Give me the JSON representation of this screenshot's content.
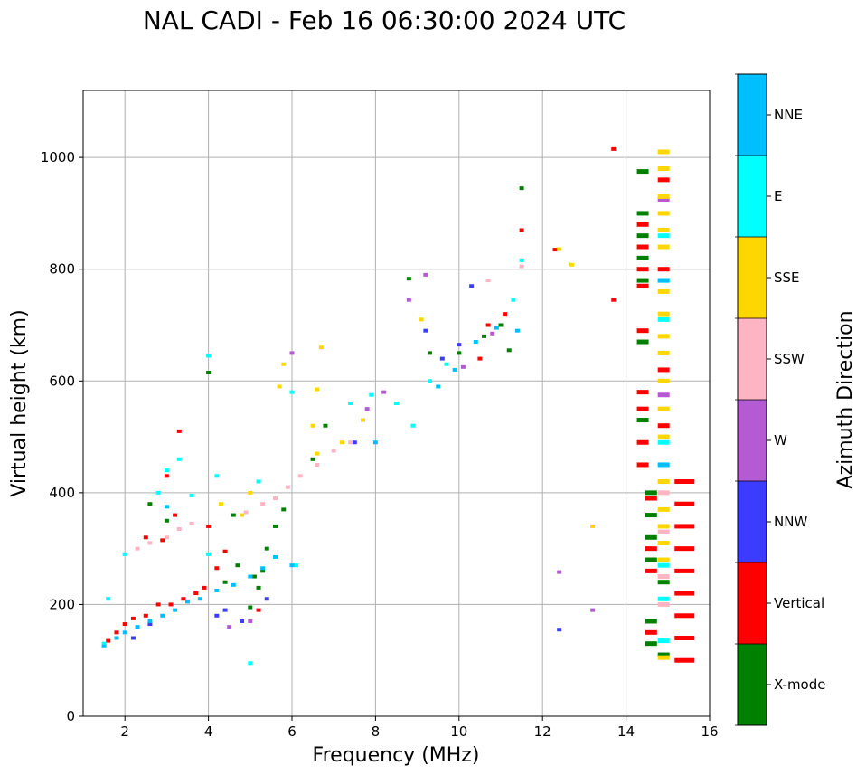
{
  "chart_data": {
    "type": "scatter",
    "title": "NAL CADI - Feb 16 06:30:00 2024 UTC",
    "xlabel": "Frequency (MHz)",
    "ylabel": "Virtual height (km)",
    "xlim": [
      1,
      16
    ],
    "ylim": [
      0,
      1120
    ],
    "xticks": [
      2,
      4,
      6,
      8,
      10,
      12,
      14,
      16
    ],
    "yticks": [
      0,
      200,
      400,
      600,
      800,
      1000
    ],
    "grid": true,
    "colorbar": {
      "label": "Azimuth Direction",
      "categories": [
        {
          "name": "X-mode",
          "color": "#008000"
        },
        {
          "name": "Vertical",
          "color": "#ff0000"
        },
        {
          "name": "NNW",
          "color": "#3c3cff"
        },
        {
          "name": "W",
          "color": "#b45ad2"
        },
        {
          "name": "SSW",
          "color": "#ffb4c3"
        },
        {
          "name": "SSE",
          "color": "#ffd700"
        },
        {
          "name": "E",
          "color": "#00ffff"
        },
        {
          "name": "NNE",
          "color": "#00bfff"
        }
      ]
    },
    "series": [
      {
        "name": "X-mode",
        "points": [
          [
            4.0,
            615
          ],
          [
            4.6,
            360
          ],
          [
            5.0,
            195
          ],
          [
            5.2,
            230
          ],
          [
            5.3,
            260
          ],
          [
            5.4,
            300
          ],
          [
            5.6,
            340
          ],
          [
            5.8,
            370
          ],
          [
            6.5,
            460
          ],
          [
            6.8,
            520
          ],
          [
            9.3,
            650
          ],
          [
            10.0,
            650
          ],
          [
            10.6,
            680
          ],
          [
            11.0,
            700
          ],
          [
            11.2,
            655
          ],
          [
            8.8,
            783
          ],
          [
            11.5,
            945
          ],
          [
            14.4,
            975
          ],
          [
            14.4,
            900
          ],
          [
            14.4,
            860
          ],
          [
            14.4,
            820
          ],
          [
            14.4,
            780
          ],
          [
            14.4,
            670
          ],
          [
            14.4,
            530
          ],
          [
            14.6,
            400
          ],
          [
            14.6,
            360
          ],
          [
            14.6,
            320
          ],
          [
            14.6,
            280
          ],
          [
            14.6,
            170
          ],
          [
            14.6,
            130
          ],
          [
            14.9,
            240
          ],
          [
            14.9,
            110
          ],
          [
            2.6,
            380
          ],
          [
            3.0,
            350
          ],
          [
            4.4,
            240
          ],
          [
            4.7,
            270
          ],
          [
            5.1,
            250
          ]
        ]
      },
      {
        "name": "Vertical",
        "points": [
          [
            1.6,
            135
          ],
          [
            1.8,
            150
          ],
          [
            2.0,
            165
          ],
          [
            2.2,
            175
          ],
          [
            2.5,
            180
          ],
          [
            2.8,
            200
          ],
          [
            3.1,
            200
          ],
          [
            3.4,
            210
          ],
          [
            3.7,
            220
          ],
          [
            3.9,
            230
          ],
          [
            4.2,
            265
          ],
          [
            4.4,
            295
          ],
          [
            5.2,
            190
          ],
          [
            2.5,
            320
          ],
          [
            2.9,
            315
          ],
          [
            3.2,
            360
          ],
          [
            4.0,
            340
          ],
          [
            10.5,
            640
          ],
          [
            10.7,
            700
          ],
          [
            11.1,
            720
          ],
          [
            11.5,
            870
          ],
          [
            12.3,
            835
          ],
          [
            13.7,
            1015
          ],
          [
            13.7,
            745
          ],
          [
            14.4,
            880
          ],
          [
            14.4,
            840
          ],
          [
            14.4,
            800
          ],
          [
            14.4,
            770
          ],
          [
            14.4,
            690
          ],
          [
            14.4,
            580
          ],
          [
            14.4,
            550
          ],
          [
            14.4,
            490
          ],
          [
            14.4,
            450
          ],
          [
            14.6,
            390
          ],
          [
            14.6,
            300
          ],
          [
            14.6,
            260
          ],
          [
            14.6,
            150
          ],
          [
            14.9,
            960
          ],
          [
            14.9,
            800
          ],
          [
            14.9,
            620
          ],
          [
            14.9,
            520
          ],
          [
            15.4,
            420
          ],
          [
            15.4,
            380
          ],
          [
            15.4,
            340
          ],
          [
            15.4,
            300
          ],
          [
            15.4,
            260
          ],
          [
            15.4,
            220
          ],
          [
            15.4,
            180
          ],
          [
            15.4,
            140
          ],
          [
            15.4,
            100
          ],
          [
            3.3,
            510
          ],
          [
            3.0,
            430
          ]
        ]
      },
      {
        "name": "NNW",
        "points": [
          [
            4.2,
            180
          ],
          [
            4.4,
            190
          ],
          [
            4.8,
            170
          ],
          [
            5.4,
            210
          ],
          [
            7.5,
            490
          ],
          [
            9.2,
            690
          ],
          [
            9.6,
            640
          ],
          [
            10.0,
            665
          ],
          [
            10.3,
            770
          ],
          [
            12.4,
            155
          ],
          [
            2.2,
            140
          ],
          [
            2.6,
            165
          ]
        ]
      },
      {
        "name": "W",
        "points": [
          [
            4.5,
            160
          ],
          [
            5.0,
            170
          ],
          [
            6.0,
            650
          ],
          [
            7.8,
            550
          ],
          [
            8.2,
            580
          ],
          [
            10.1,
            625
          ],
          [
            10.8,
            685
          ],
          [
            12.4,
            258
          ],
          [
            13.2,
            190
          ],
          [
            14.9,
            925
          ],
          [
            14.9,
            575
          ],
          [
            8.8,
            745
          ],
          [
            9.2,
            790
          ]
        ]
      },
      {
        "name": "SSW",
        "points": [
          [
            2.0,
            290
          ],
          [
            2.3,
            300
          ],
          [
            2.6,
            310
          ],
          [
            3.0,
            320
          ],
          [
            3.3,
            335
          ],
          [
            3.6,
            345
          ],
          [
            4.9,
            365
          ],
          [
            5.3,
            380
          ],
          [
            5.6,
            390
          ],
          [
            5.9,
            410
          ],
          [
            6.2,
            430
          ],
          [
            6.6,
            450
          ],
          [
            7.0,
            475
          ],
          [
            7.4,
            490
          ],
          [
            10.7,
            780
          ],
          [
            11.5,
            805
          ],
          [
            14.9,
            400
          ],
          [
            14.9,
            330
          ],
          [
            14.9,
            250
          ],
          [
            14.9,
            200
          ]
        ]
      },
      {
        "name": "SSE",
        "points": [
          [
            4.3,
            380
          ],
          [
            4.8,
            360
          ],
          [
            5.7,
            590
          ],
          [
            6.6,
            585
          ],
          [
            6.7,
            660
          ],
          [
            6.5,
            520
          ],
          [
            6.6,
            470
          ],
          [
            7.2,
            490
          ],
          [
            7.7,
            530
          ],
          [
            9.1,
            710
          ],
          [
            12.7,
            808
          ],
          [
            13.2,
            340
          ],
          [
            12.4,
            836
          ],
          [
            14.9,
            1010
          ],
          [
            14.9,
            980
          ],
          [
            14.9,
            930
          ],
          [
            14.9,
            900
          ],
          [
            14.9,
            870
          ],
          [
            14.9,
            840
          ],
          [
            14.9,
            760
          ],
          [
            14.9,
            720
          ],
          [
            14.9,
            680
          ],
          [
            14.9,
            650
          ],
          [
            14.9,
            600
          ],
          [
            14.9,
            550
          ],
          [
            14.9,
            500
          ],
          [
            14.9,
            450
          ],
          [
            14.9,
            420
          ],
          [
            14.9,
            370
          ],
          [
            14.9,
            340
          ],
          [
            14.9,
            310
          ],
          [
            14.9,
            280
          ],
          [
            14.9,
            105
          ],
          [
            5.8,
            630
          ],
          [
            5.0,
            400
          ]
        ]
      },
      {
        "name": "E",
        "points": [
          [
            1.5,
            130
          ],
          [
            1.6,
            210
          ],
          [
            2.0,
            290
          ],
          [
            2.8,
            400
          ],
          [
            3.0,
            440
          ],
          [
            3.3,
            460
          ],
          [
            3.6,
            395
          ],
          [
            4.0,
            290
          ],
          [
            4.2,
            430
          ],
          [
            4.0,
            645
          ],
          [
            5.0,
            95
          ],
          [
            5.2,
            420
          ],
          [
            6.0,
            580
          ],
          [
            6.1,
            270
          ],
          [
            7.4,
            560
          ],
          [
            7.9,
            575
          ],
          [
            8.5,
            560
          ],
          [
            8.9,
            520
          ],
          [
            9.3,
            600
          ],
          [
            9.7,
            630
          ],
          [
            11.3,
            745
          ],
          [
            11.5,
            816
          ],
          [
            14.9,
            860
          ],
          [
            14.9,
            780
          ],
          [
            14.9,
            710
          ],
          [
            14.9,
            490
          ],
          [
            14.9,
            270
          ],
          [
            14.9,
            210
          ],
          [
            14.9,
            135
          ]
        ]
      },
      {
        "name": "NNE",
        "points": [
          [
            1.5,
            125
          ],
          [
            1.8,
            140
          ],
          [
            2.0,
            150
          ],
          [
            2.3,
            160
          ],
          [
            2.6,
            170
          ],
          [
            2.9,
            180
          ],
          [
            3.2,
            190
          ],
          [
            3.5,
            205
          ],
          [
            3.8,
            210
          ],
          [
            4.2,
            225
          ],
          [
            4.6,
            235
          ],
          [
            5.0,
            250
          ],
          [
            5.3,
            265
          ],
          [
            5.6,
            285
          ],
          [
            6.0,
            270
          ],
          [
            8.0,
            490
          ],
          [
            9.5,
            590
          ],
          [
            9.9,
            620
          ],
          [
            10.4,
            670
          ],
          [
            10.9,
            695
          ],
          [
            11.4,
            690
          ],
          [
            14.9,
            780
          ],
          [
            14.9,
            450
          ],
          [
            3.0,
            375
          ]
        ]
      }
    ]
  }
}
